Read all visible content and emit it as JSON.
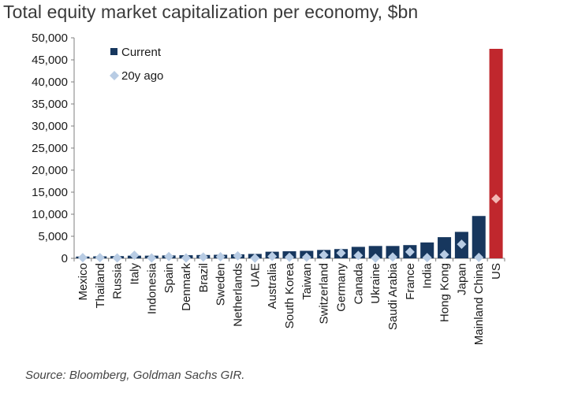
{
  "chart_data": {
    "type": "bar",
    "title": "Total equity market capitalization per economy, $bn",
    "source": "Source: Bloomberg, Goldman Sachs GIR.",
    "ylim": [
      0,
      50000
    ],
    "yticks": [
      "0",
      "5,000",
      "10,000",
      "15,000",
      "20,000",
      "25,000",
      "30,000",
      "35,000",
      "40,000",
      "45,000",
      "50,000"
    ],
    "ytick_values": [
      0,
      5000,
      10000,
      15000,
      20000,
      25000,
      30000,
      35000,
      40000,
      45000,
      50000
    ],
    "categories": [
      "Mexico",
      "Thailand",
      "Russia",
      "Italy",
      "Indonesia",
      "Spain",
      "Denmark",
      "Brazil",
      "Sweden",
      "Netherlands",
      "UAE",
      "Australia",
      "South Korea",
      "Taiwan",
      "Switzerland",
      "Germany",
      "Canada",
      "Ukraine",
      "Saudi Arabia",
      "France",
      "India",
      "Hong Kong",
      "Japan",
      "Mainland China",
      "US"
    ],
    "series": [
      {
        "name": "Current",
        "type": "bar",
        "color": "#17375e",
        "values": [
          400,
          450,
          500,
          600,
          600,
          650,
          700,
          750,
          800,
          900,
          1000,
          1500,
          1600,
          1700,
          1900,
          2100,
          2600,
          2800,
          2800,
          3000,
          3600,
          4800,
          6000,
          9600,
          47500
        ]
      },
      {
        "name": "20y ago",
        "type": "marker",
        "color": "#b8cce4",
        "values": [
          150,
          150,
          100,
          700,
          100,
          400,
          100,
          300,
          350,
          550,
          50,
          450,
          250,
          250,
          750,
          1200,
          650,
          50,
          300,
          1450,
          150,
          850,
          3200,
          200,
          13500
        ]
      }
    ],
    "highlight": {
      "category": "US",
      "color": "#c0272d",
      "marker_color": "#f2b8b4"
    }
  }
}
